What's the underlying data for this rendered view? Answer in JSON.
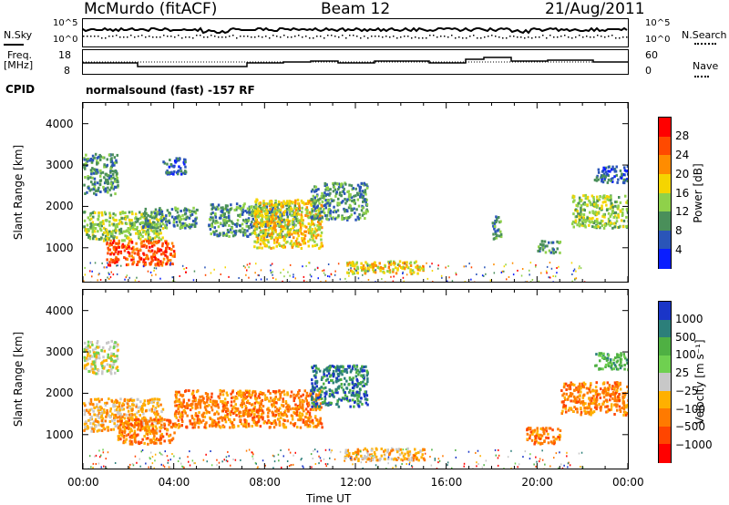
{
  "header": {
    "station": "McMurdo (fitACF)",
    "beam": "Beam 12",
    "date": "21/Aug/2011"
  },
  "top_panels": {
    "nsky_label": "N.Sky",
    "nsearch_label": "N.Search",
    "noise_ticks_left": [
      "10^5",
      "10^0"
    ],
    "noise_ticks_right": [
      "10^5",
      "10^0"
    ],
    "freq_label_line1": "Freq.",
    "freq_label_line2": "[MHz]",
    "freq_ticks": [
      "18",
      "8"
    ],
    "nave_label": "Nave",
    "nave_ticks": [
      "60",
      "0"
    ],
    "cpid_label": "CPID",
    "cpid_text": "normalsound (fast) -157 RF"
  },
  "chart_data": [
    {
      "type": "heatmap",
      "panel": "power",
      "ylabel": "Slant Range [km]",
      "y_ticks": [
        1000,
        2000,
        3000,
        4000
      ],
      "ylim": [
        180,
        4500
      ],
      "xlim_hours": [
        0,
        24
      ],
      "colorbar": {
        "label": "Power [dB]",
        "ticks": [
          "4",
          "8",
          "12",
          "16",
          "20",
          "24",
          "28"
        ],
        "colors": [
          "#0a1eff",
          "#2a55b8",
          "#4a8f5a",
          "#8fd14a",
          "#f5d500",
          "#ff8c00",
          "#ff4a00",
          "#ff0000"
        ]
      },
      "echo_regions": [
        {
          "t0": 0.0,
          "t1": 1.5,
          "r0": 2300,
          "r1": 3300,
          "level": 2
        },
        {
          "t0": 0.0,
          "t1": 3.5,
          "r0": 1200,
          "r1": 1900,
          "level": 3
        },
        {
          "t0": 1.0,
          "t1": 4.0,
          "r0": 600,
          "r1": 1200,
          "level": 6
        },
        {
          "t0": 2.5,
          "t1": 5.0,
          "r0": 1500,
          "r1": 2000,
          "level": 2
        },
        {
          "t0": 3.5,
          "t1": 4.5,
          "r0": 2800,
          "r1": 3200,
          "level": 1
        },
        {
          "t0": 5.5,
          "t1": 9.5,
          "r0": 1300,
          "r1": 2100,
          "level": 2
        },
        {
          "t0": 7.5,
          "t1": 10.5,
          "r0": 1000,
          "r1": 2200,
          "level": 4
        },
        {
          "t0": 10.0,
          "t1": 12.5,
          "r0": 1700,
          "r1": 2600,
          "level": 2
        },
        {
          "t0": 11.5,
          "t1": 15.0,
          "r0": 400,
          "r1": 700,
          "level": 4
        },
        {
          "t0": 18.0,
          "t1": 18.4,
          "r0": 1200,
          "r1": 1800,
          "level": 2
        },
        {
          "t0": 20.0,
          "t1": 21.0,
          "r0": 900,
          "r1": 1200,
          "level": 2
        },
        {
          "t0": 21.5,
          "t1": 24.0,
          "r0": 1500,
          "r1": 2300,
          "level": 3
        },
        {
          "t0": 22.5,
          "t1": 24.0,
          "r0": 2600,
          "r1": 3000,
          "level": 1
        }
      ]
    },
    {
      "type": "heatmap",
      "panel": "velocity",
      "ylabel": "Slant Range [km]",
      "y_ticks": [
        1000,
        2000,
        3000,
        4000
      ],
      "ylim": [
        180,
        4500
      ],
      "xlim_hours": [
        0,
        24
      ],
      "x_ticks": [
        "00:00",
        "04:00",
        "08:00",
        "12:00",
        "16:00",
        "20:00",
        "00:00"
      ],
      "xlabel": "Time UT",
      "colorbar": {
        "label": "Velocity [m s⁻¹]",
        "ticks": [
          "1000",
          "500",
          "100",
          "25",
          "−25",
          "−100",
          "−500",
          "−1000"
        ],
        "colors": [
          "#1a35c8",
          "#2c7f7a",
          "#4fb043",
          "#6fd050",
          "#c8c8c8",
          "#ffb000",
          "#ff7a00",
          "#ff4500",
          "#ff0000"
        ]
      },
      "echo_regions": [
        {
          "t0": 0.0,
          "t1": 1.5,
          "r0": 2500,
          "r1": 3300,
          "level": 4
        },
        {
          "t0": 0.0,
          "t1": 3.5,
          "r0": 1100,
          "r1": 1900,
          "level": 5
        },
        {
          "t0": 1.5,
          "t1": 4.0,
          "r0": 800,
          "r1": 1400,
          "level": 6
        },
        {
          "t0": 4.0,
          "t1": 10.5,
          "r0": 1200,
          "r1": 2100,
          "level": 6
        },
        {
          "t0": 10.0,
          "t1": 12.5,
          "r0": 1700,
          "r1": 2700,
          "level": 1
        },
        {
          "t0": 11.5,
          "t1": 15.0,
          "r0": 400,
          "r1": 700,
          "level": 5
        },
        {
          "t0": 19.5,
          "t1": 21.0,
          "r0": 800,
          "r1": 1200,
          "level": 6
        },
        {
          "t0": 21.0,
          "t1": 24.0,
          "r0": 1500,
          "r1": 2300,
          "level": 6
        },
        {
          "t0": 22.5,
          "t1": 24.0,
          "r0": 2600,
          "r1": 3000,
          "level": 2
        }
      ]
    }
  ]
}
